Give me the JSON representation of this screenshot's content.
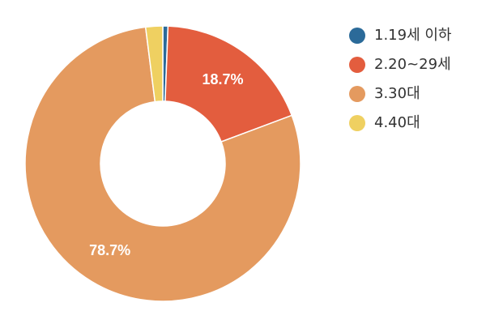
{
  "chart_data": {
    "type": "pie",
    "title": "",
    "categories": [
      "1.19세 이하",
      "2.20~29세",
      "3.30대",
      "4.40대"
    ],
    "values": [
      0.6,
      18.7,
      78.7,
      2.0
    ],
    "colors": [
      "#2b6a99",
      "#e35d3e",
      "#e49a5f",
      "#efd061"
    ],
    "data_labels": [
      "",
      "18.7%",
      "78.7%",
      ""
    ],
    "donut": true,
    "legend_position": "right"
  }
}
